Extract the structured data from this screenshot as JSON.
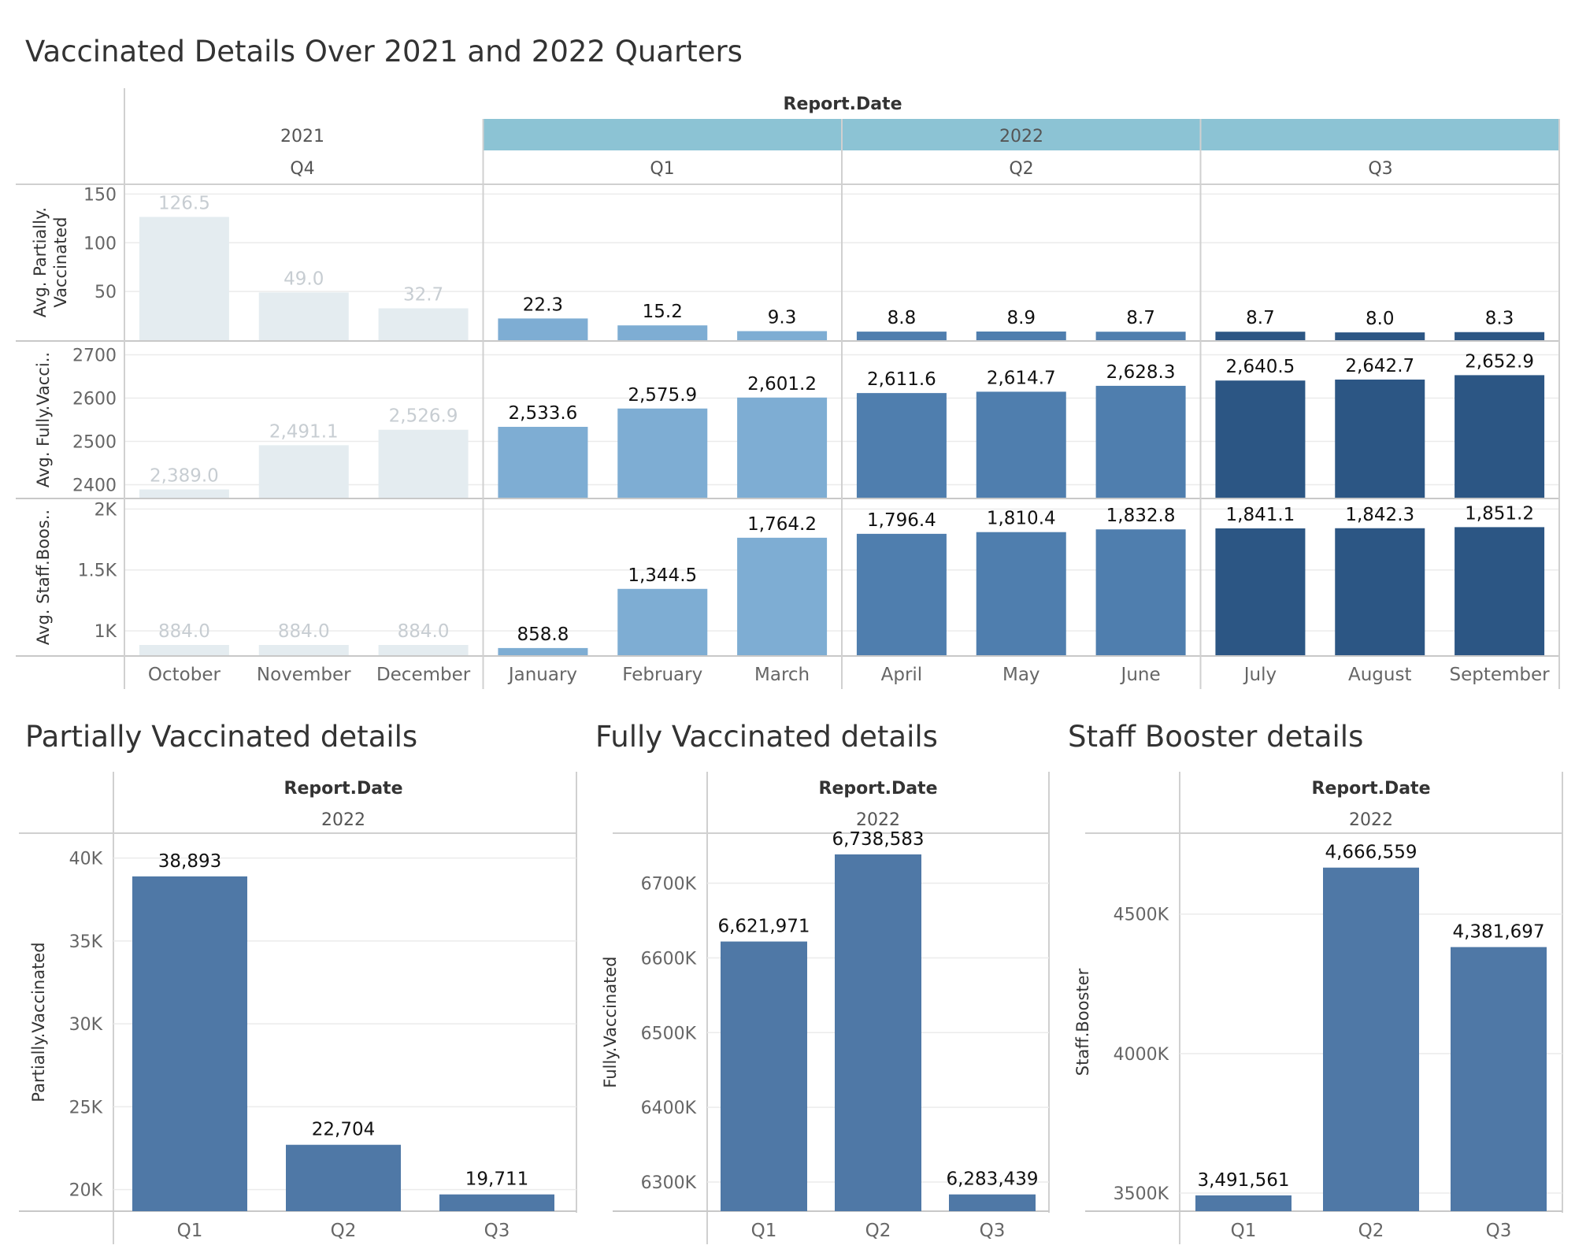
{
  "colors": {
    "faded": "#e4ecf0",
    "q1": "#7eadd3",
    "q2": "#4f7eae",
    "q3": "#2c5684",
    "summary": "#4f78a6",
    "band2022": "#8cc3d4",
    "grid": "#ebebeb",
    "divider": "#d0d0d0"
  },
  "top": {
    "title": "Vaccinated Details Over 2021 and 2022 Quarters",
    "header_field": "Report.Date",
    "years": [
      {
        "label": "2021",
        "quarters": [
          {
            "label": "Q4"
          }
        ]
      },
      {
        "label": "2022",
        "quarters": [
          {
            "label": "Q1"
          },
          {
            "label": "Q2"
          },
          {
            "label": "Q3"
          }
        ]
      }
    ],
    "months": [
      "October",
      "November",
      "December",
      "January",
      "February",
      "March",
      "April",
      "May",
      "June",
      "July",
      "August",
      "September"
    ]
  },
  "bottom": {
    "header_field": "Report.Date",
    "year": "2022",
    "panels": [
      {
        "title": "Partially Vaccinated details",
        "ylabel": "Partially.Vaccinated"
      },
      {
        "title": "Fully Vaccinated details",
        "ylabel": "Fully.Vaccinated"
      },
      {
        "title": "Staff Booster details",
        "ylabel": "Staff.Booster"
      }
    ]
  },
  "chart_data": [
    {
      "type": "bar",
      "title": "Vaccinated Details Over 2021 and 2022 Quarters",
      "ylabel": "Avg. Partially.\nVaccinated",
      "categories": [
        "October",
        "November",
        "December",
        "January",
        "February",
        "March",
        "April",
        "May",
        "June",
        "July",
        "August",
        "September"
      ],
      "quarters": [
        "2021 Q4",
        "2021 Q4",
        "2021 Q4",
        "2022 Q1",
        "2022 Q1",
        "2022 Q1",
        "2022 Q2",
        "2022 Q2",
        "2022 Q2",
        "2022 Q3",
        "2022 Q3",
        "2022 Q3"
      ],
      "values": [
        126.5,
        49.0,
        32.7,
        22.3,
        15.2,
        9.3,
        8.8,
        8.9,
        8.7,
        8.7,
        8.0,
        8.3
      ],
      "labels": [
        "126.5",
        "49.0",
        "32.7",
        "22.3",
        "15.2",
        "9.3",
        "8.8",
        "8.9",
        "8.7",
        "8.7",
        "8.0",
        "8.3"
      ],
      "ylim": [
        0,
        160
      ],
      "yticks": [
        {
          "v": 50,
          "t": "50"
        },
        {
          "v": 100,
          "t": "100"
        },
        {
          "v": 150,
          "t": "150"
        }
      ]
    },
    {
      "type": "bar",
      "ylabel": "Avg. Fully.Vacci..",
      "categories": [
        "October",
        "November",
        "December",
        "January",
        "February",
        "March",
        "April",
        "May",
        "June",
        "July",
        "August",
        "September"
      ],
      "values": [
        2389.0,
        2491.1,
        2526.9,
        2533.6,
        2575.9,
        2601.2,
        2611.6,
        2614.7,
        2628.3,
        2640.5,
        2642.7,
        2652.9
      ],
      "labels": [
        "2,389.0",
        "2,491.1",
        "2,526.9",
        "2,533.6",
        "2,575.9",
        "2,601.2",
        "2,611.6",
        "2,614.7",
        "2,628.3",
        "2,640.5",
        "2,642.7",
        "2,652.9"
      ],
      "ylim": [
        2370,
        2730
      ],
      "yticks": [
        {
          "v": 2400,
          "t": "2400"
        },
        {
          "v": 2500,
          "t": "2500"
        },
        {
          "v": 2600,
          "t": "2600"
        },
        {
          "v": 2700,
          "t": "2700"
        }
      ]
    },
    {
      "type": "bar",
      "ylabel": "Avg. Staff.Boos..",
      "categories": [
        "October",
        "November",
        "December",
        "January",
        "February",
        "March",
        "April",
        "May",
        "June",
        "July",
        "August",
        "September"
      ],
      "values": [
        884.0,
        884.0,
        884.0,
        858.8,
        1344.5,
        1764.2,
        1796.4,
        1810.4,
        1832.8,
        1841.1,
        1842.3,
        1851.2
      ],
      "labels": [
        "884.0",
        "884.0",
        "884.0",
        "858.8",
        "1,344.5",
        "1,764.2",
        "1,796.4",
        "1,810.4",
        "1,832.8",
        "1,841.1",
        "1,842.3",
        "1,851.2"
      ],
      "ylim": [
        800,
        2080
      ],
      "yticks": [
        {
          "v": 1000,
          "t": "1K"
        },
        {
          "v": 1500,
          "t": "1.5K"
        },
        {
          "v": 2000,
          "t": "2K"
        }
      ]
    },
    {
      "type": "bar",
      "title": "Partially Vaccinated details",
      "xlabel": "2022",
      "ylabel": "Partially.Vaccinated",
      "categories": [
        "Q1",
        "Q2",
        "Q3"
      ],
      "values": [
        38893,
        22704,
        19711
      ],
      "labels": [
        "38,893",
        "22,704",
        "19,711"
      ],
      "ylim": [
        18700,
        41500
      ],
      "yticks": [
        {
          "v": 20000,
          "t": "20K"
        },
        {
          "v": 25000,
          "t": "25K"
        },
        {
          "v": 30000,
          "t": "30K"
        },
        {
          "v": 35000,
          "t": "35K"
        },
        {
          "v": 40000,
          "t": "40K"
        }
      ]
    },
    {
      "type": "bar",
      "title": "Fully Vaccinated details",
      "xlabel": "2022",
      "ylabel": "Fully.Vaccinated",
      "categories": [
        "Q1",
        "Q2",
        "Q3"
      ],
      "values": [
        6621971,
        6738583,
        6283439
      ],
      "labels": [
        "6,621,971",
        "6,738,583",
        "6,283,439"
      ],
      "ylim": [
        6261000,
        6767000
      ],
      "yticks": [
        {
          "v": 6300000,
          "t": "6300K"
        },
        {
          "v": 6400000,
          "t": "6400K"
        },
        {
          "v": 6500000,
          "t": "6500K"
        },
        {
          "v": 6600000,
          "t": "6600K"
        },
        {
          "v": 6700000,
          "t": "6700K"
        }
      ]
    },
    {
      "type": "bar",
      "title": "Staff Booster details",
      "xlabel": "2022",
      "ylabel": "Staff.Booster",
      "categories": [
        "Q1",
        "Q2",
        "Q3"
      ],
      "values": [
        3491561,
        4666559,
        4381697
      ],
      "labels": [
        "3,491,561",
        "4,666,559",
        "4,381,697"
      ],
      "ylim": [
        3435000,
        4790000
      ],
      "yticks": [
        {
          "v": 3500000,
          "t": "3500K"
        },
        {
          "v": 4000000,
          "t": "4000K"
        },
        {
          "v": 4500000,
          "t": "4500K"
        }
      ]
    }
  ]
}
